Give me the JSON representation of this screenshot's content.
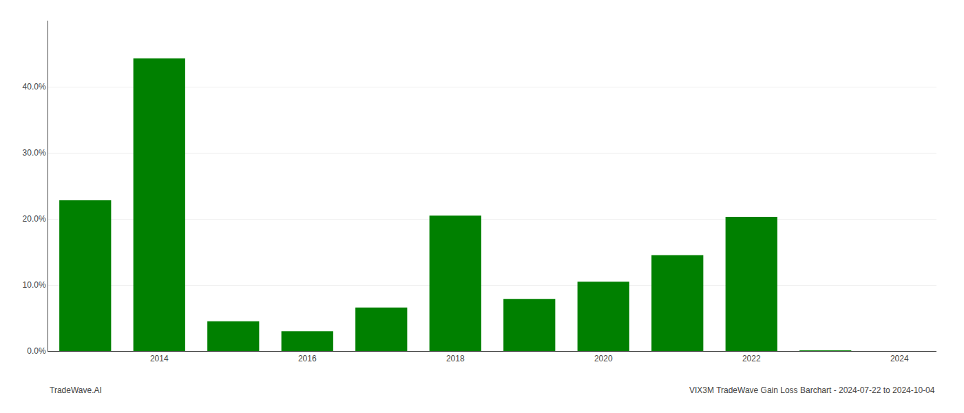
{
  "chart_data": {
    "type": "bar",
    "x": [
      2013,
      2014,
      2015,
      2016,
      2017,
      2018,
      2019,
      2020,
      2021,
      2022,
      2023
    ],
    "values": [
      0.228,
      0.443,
      0.045,
      0.03,
      0.066,
      0.205,
      0.079,
      0.105,
      0.145,
      0.203,
      0.001
    ],
    "color": "#008000",
    "xlim": [
      2012.5,
      2024.5
    ],
    "xticks": [
      2014,
      2016,
      2018,
      2020,
      2022,
      2024
    ],
    "ylim": [
      0,
      0.5
    ],
    "yticks": [
      {
        "value": 0.0,
        "label": "0.0%"
      },
      {
        "value": 0.1,
        "label": "10.0%"
      },
      {
        "value": 0.2,
        "label": "20.0%"
      },
      {
        "value": 0.3,
        "label": "30.0%"
      },
      {
        "value": 0.4,
        "label": "40.0%"
      }
    ],
    "grid": true,
    "annotations": [
      "TradeWave.AI",
      "VIX3M TradeWave Gain Loss Barchart - 2024-07-22 to 2024-10-04"
    ]
  }
}
